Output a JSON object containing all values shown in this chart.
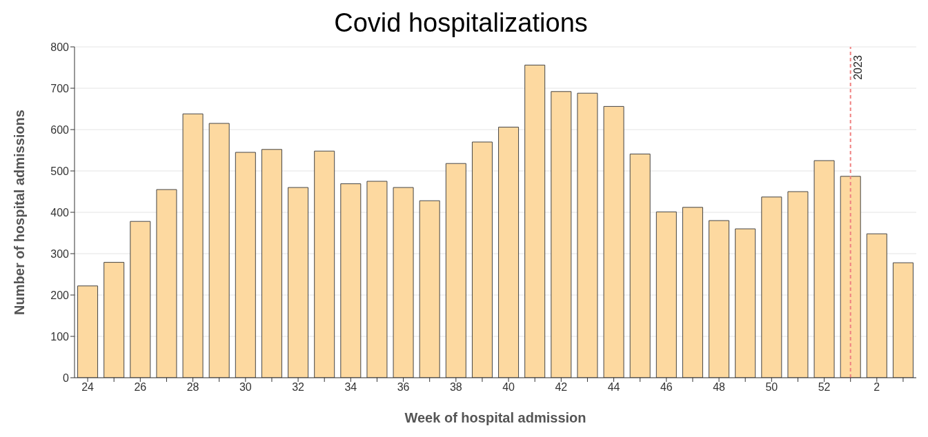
{
  "chart_data": {
    "type": "bar",
    "title": "Covid hospitalizations",
    "xlabel": "Week of hospital admission",
    "ylabel": "Number of hospital admissions",
    "categories": [
      "24",
      null,
      "26",
      null,
      "28",
      null,
      "30",
      null,
      "32",
      null,
      "34",
      null,
      "36",
      null,
      "38",
      null,
      "40",
      null,
      "42",
      null,
      "44",
      null,
      "46",
      null,
      "48",
      null,
      "50",
      null,
      "52",
      null,
      "2",
      null
    ],
    "values": [
      222,
      279,
      378,
      455,
      638,
      615,
      545,
      552,
      460,
      548,
      469,
      475,
      460,
      428,
      518,
      570,
      606,
      756,
      692,
      688,
      656,
      541,
      401,
      412,
      380,
      360,
      437,
      450,
      525,
      487,
      348,
      278
    ],
    "color": "#fdd9a0",
    "ylim": [
      0,
      800
    ],
    "yticks": [
      0,
      100,
      200,
      300,
      400,
      500,
      600,
      700,
      800
    ],
    "grid": "y",
    "annotations": [
      "2023"
    ]
  }
}
